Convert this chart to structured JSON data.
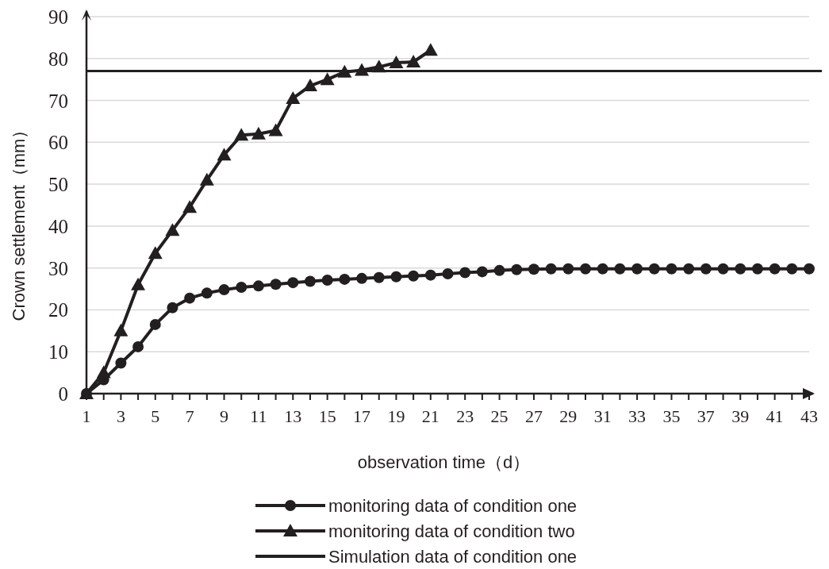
{
  "chart_data": {
    "type": "line",
    "xlabel": "observation time（d）",
    "ylabel": "Crown settlement（mm）",
    "x": [
      1,
      2,
      3,
      4,
      5,
      6,
      7,
      8,
      9,
      10,
      11,
      12,
      13,
      14,
      15,
      16,
      17,
      18,
      19,
      20,
      21,
      22,
      23,
      24,
      25,
      26,
      27,
      28,
      29,
      30,
      31,
      32,
      33,
      34,
      35,
      36,
      37,
      38,
      39,
      40,
      41,
      42,
      43
    ],
    "xlim": [
      1,
      43
    ],
    "xticks": [
      1,
      {
        "value": 2,
        "label": null
      },
      3,
      {
        "value": 4,
        "label": null
      },
      5,
      {
        "value": 6,
        "label": null
      },
      7,
      {
        "value": 8,
        "label": null
      },
      9,
      {
        "value": 10,
        "label": null
      },
      11,
      {
        "value": 12,
        "label": null
      },
      13,
      {
        "value": 14,
        "label": null
      },
      15,
      {
        "value": 16,
        "label": null
      },
      17,
      {
        "value": 18,
        "label": null
      },
      19,
      {
        "value": 20,
        "label": null
      },
      21,
      {
        "value": 22,
        "label": null
      },
      23,
      {
        "value": 24,
        "label": null
      },
      25,
      {
        "value": 26,
        "label": null
      },
      27,
      {
        "value": 28,
        "label": null
      },
      29,
      {
        "value": 30,
        "label": null
      },
      31,
      {
        "value": 32,
        "label": null
      },
      33,
      {
        "value": 34,
        "label": null
      },
      35,
      {
        "value": 36,
        "label": null
      },
      37,
      {
        "value": 38,
        "label": null
      },
      39,
      {
        "value": 40,
        "label": null
      },
      41,
      {
        "value": 42,
        "label": null
      },
      43
    ],
    "ylim": [
      0,
      90
    ],
    "yticks": [
      0,
      10,
      20,
      30,
      40,
      50,
      60,
      70,
      80,
      90
    ],
    "grid": "y",
    "legend": "bottom",
    "line_style": "solid",
    "series": [
      {
        "name": "monitoring data of condition one",
        "color": "#231f20",
        "marker": "circle",
        "values": [
          0,
          3.3,
          7.3,
          11.2,
          16.5,
          20.5,
          22.8,
          24,
          24.8,
          25.4,
          25.7,
          26.1,
          26.5,
          26.8,
          27.1,
          27.3,
          27.5,
          27.7,
          27.9,
          28.1,
          28.3,
          28.6,
          28.9,
          29.1,
          29.4,
          29.6,
          29.7,
          29.8,
          29.8,
          29.8,
          29.8,
          29.8,
          29.8,
          29.8,
          29.8,
          29.8,
          29.8,
          29.8,
          29.8,
          29.8,
          29.8,
          29.8,
          29.8
        ]
      },
      {
        "name": "monitoring data of condition two",
        "color": "#231f20",
        "marker": "triangle",
        "values": [
          0,
          5,
          15,
          26,
          33.5,
          39,
          44.5,
          51,
          57,
          61.7,
          62,
          62.8,
          70.5,
          73.5,
          75,
          76.8,
          77.2,
          78,
          79,
          79.2,
          82,
          null,
          null,
          null,
          null,
          null,
          null,
          null,
          null,
          null,
          null,
          null,
          null,
          null,
          null,
          null,
          null,
          null,
          null,
          null,
          null,
          null,
          null
        ]
      }
    ],
    "ref_lines": [
      {
        "axis": "y",
        "value": 77,
        "label": "Simulation data of condition one",
        "color": "#231f20",
        "line_style": "solid"
      }
    ]
  }
}
